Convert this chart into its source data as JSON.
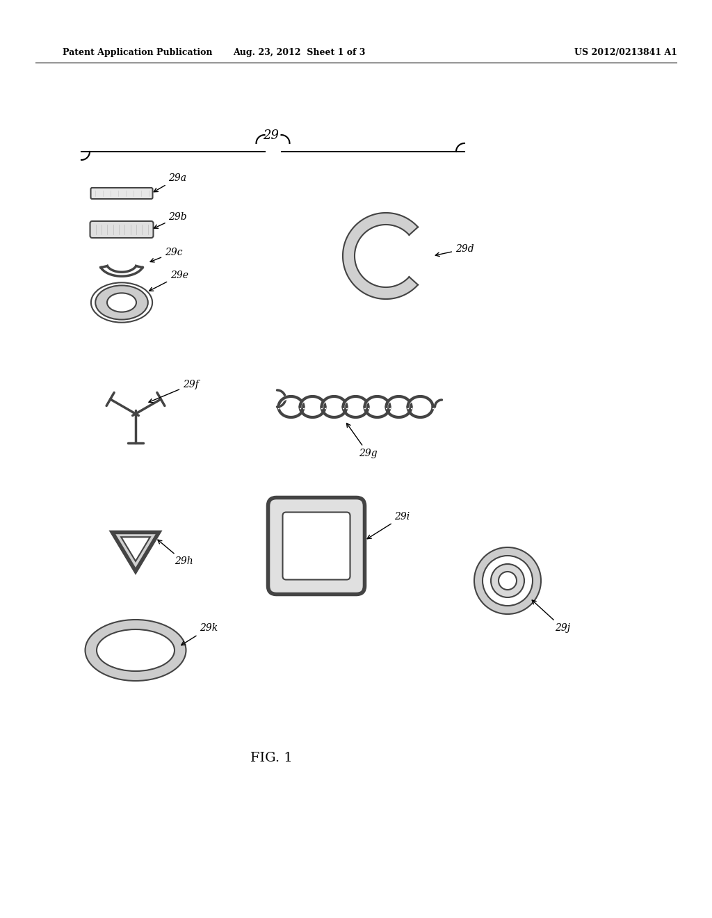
{
  "bg_color": "#ffffff",
  "header_left": "Patent Application Publication",
  "header_mid": "Aug. 23, 2012  Sheet 1 of 3",
  "header_right": "US 2012/0213841 A1",
  "fig_label": "FIG. 1",
  "main_label": "29",
  "labels": [
    "29a",
    "29b",
    "29c",
    "29d",
    "29e",
    "29f",
    "29g",
    "29h",
    "29i",
    "29j",
    "29k"
  ],
  "gray": "#444444",
  "lgray": "#888888",
  "lw_thin": 1.5,
  "lw_med": 2.5,
  "lw_thick": 4.0
}
